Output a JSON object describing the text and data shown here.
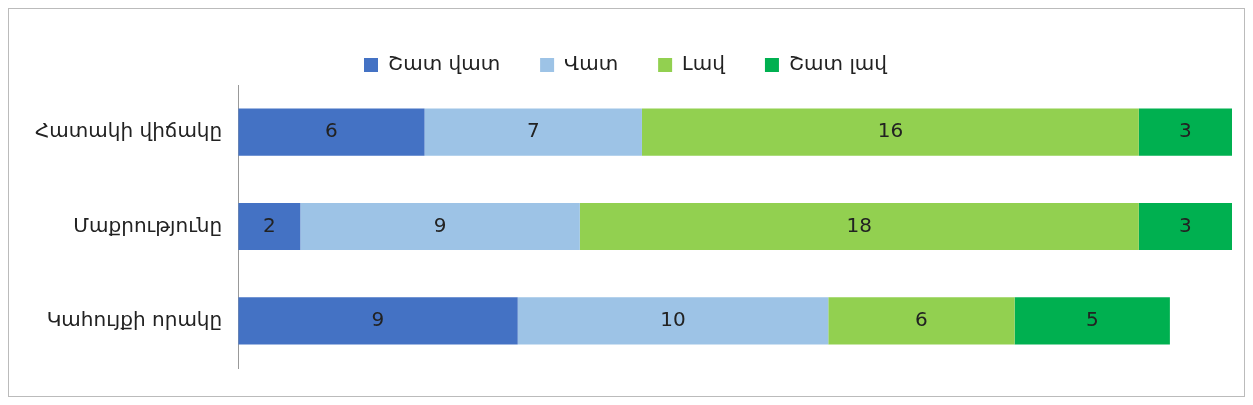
{
  "chart_data": {
    "type": "bar",
    "orientation": "horizontal",
    "stacked": true,
    "data_labels": true,
    "legend": "top",
    "grid": false,
    "categories": [
      "Հատակի վիճակը",
      "Մաքրությունը",
      "Կահույքի որակը"
    ],
    "series": [
      {
        "name": "Շատ վատ",
        "color": "#4472c4",
        "values": [
          6,
          2,
          9
        ]
      },
      {
        "name": "Վատ",
        "color": "#9dc3e6",
        "values": [
          7,
          9,
          10
        ]
      },
      {
        "name": "Լավ",
        "color": "#92d050",
        "values": [
          16,
          18,
          6
        ]
      },
      {
        "name": "Շատ լավ",
        "color": "#00b050",
        "values": [
          3,
          3,
          5
        ]
      }
    ]
  }
}
